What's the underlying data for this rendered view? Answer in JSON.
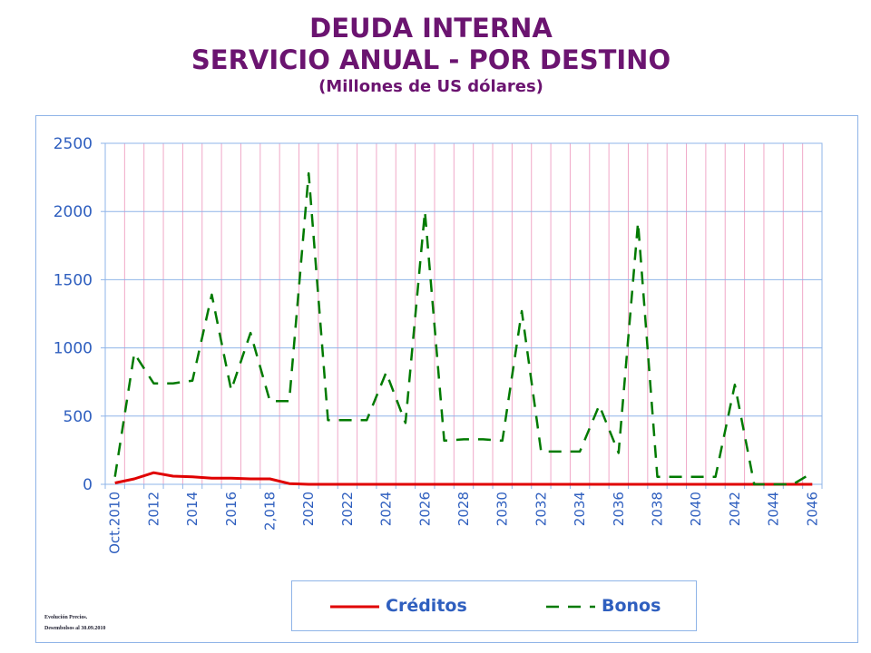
{
  "title": {
    "line1": "DEUDA INTERNA",
    "line2": "SERVICIO ANUAL - POR DESTINO",
    "line3": "(Millones de US dólares)"
  },
  "footnote": {
    "line1": "Evolución Precios.",
    "line2": "Desembolsos al 30.09.2010"
  },
  "colors": {
    "title": "#6b1470",
    "axis_text": "#2f5fbf",
    "grid_horizontal": "#8fb4e8",
    "grid_vertical": "#f0a8c8",
    "creditos": "#e00000",
    "bonos": "#007a00"
  },
  "chart_data": {
    "type": "line",
    "title": "DEUDA INTERNA SERVICIO ANUAL - POR DESTINO",
    "subtitle": "(Millones de US dólares)",
    "xlabel": "",
    "ylabel": "",
    "ylim": [
      0,
      2500
    ],
    "yticks": [
      0,
      500,
      1000,
      1500,
      2000,
      2500
    ],
    "x": [
      "Oct.2010",
      "2011",
      "2012",
      "2013",
      "2014",
      "2015",
      "2016",
      "2017",
      "2,018",
      "2019",
      "2020",
      "2021",
      "2022",
      "2023",
      "2024",
      "2025",
      "2026",
      "2027",
      "2028",
      "2029",
      "2030",
      "2031",
      "2032",
      "2033",
      "2034",
      "2035",
      "2036",
      "2037",
      "2038",
      "2039",
      "2040",
      "2041",
      "2042",
      "2043",
      "2044",
      "2045",
      "2046"
    ],
    "x_tick_labels": [
      "Oct.2010",
      "",
      "2012",
      "",
      "2014",
      "",
      "2016",
      "",
      "2,018",
      "",
      "2020",
      "",
      "2022",
      "",
      "2024",
      "",
      "2026",
      "",
      "2028",
      "",
      "2030",
      "",
      "2032",
      "",
      "2034",
      "",
      "2036",
      "",
      "2038",
      "",
      "2040",
      "",
      "2042",
      "",
      "2044",
      "",
      "2046"
    ],
    "grid": true,
    "legend_position": "bottom",
    "series": [
      {
        "name": "Créditos",
        "style": "solid",
        "color": "#e00000",
        "values": [
          10,
          40,
          85,
          60,
          55,
          45,
          45,
          40,
          40,
          5,
          0,
          0,
          0,
          0,
          0,
          0,
          0,
          0,
          0,
          0,
          0,
          0,
          0,
          0,
          0,
          0,
          0,
          0,
          0,
          0,
          0,
          0,
          0,
          0,
          0,
          0,
          0
        ]
      },
      {
        "name": "Bonos",
        "style": "dashed",
        "color": "#007a00",
        "values": [
          55,
          960,
          740,
          740,
          760,
          1390,
          690,
          1110,
          610,
          610,
          2280,
          470,
          470,
          470,
          820,
          450,
          2000,
          320,
          330,
          330,
          320,
          1270,
          240,
          240,
          240,
          580,
          230,
          1920,
          55,
          55,
          55,
          55,
          730,
          0,
          0,
          0,
          85
        ]
      }
    ]
  }
}
